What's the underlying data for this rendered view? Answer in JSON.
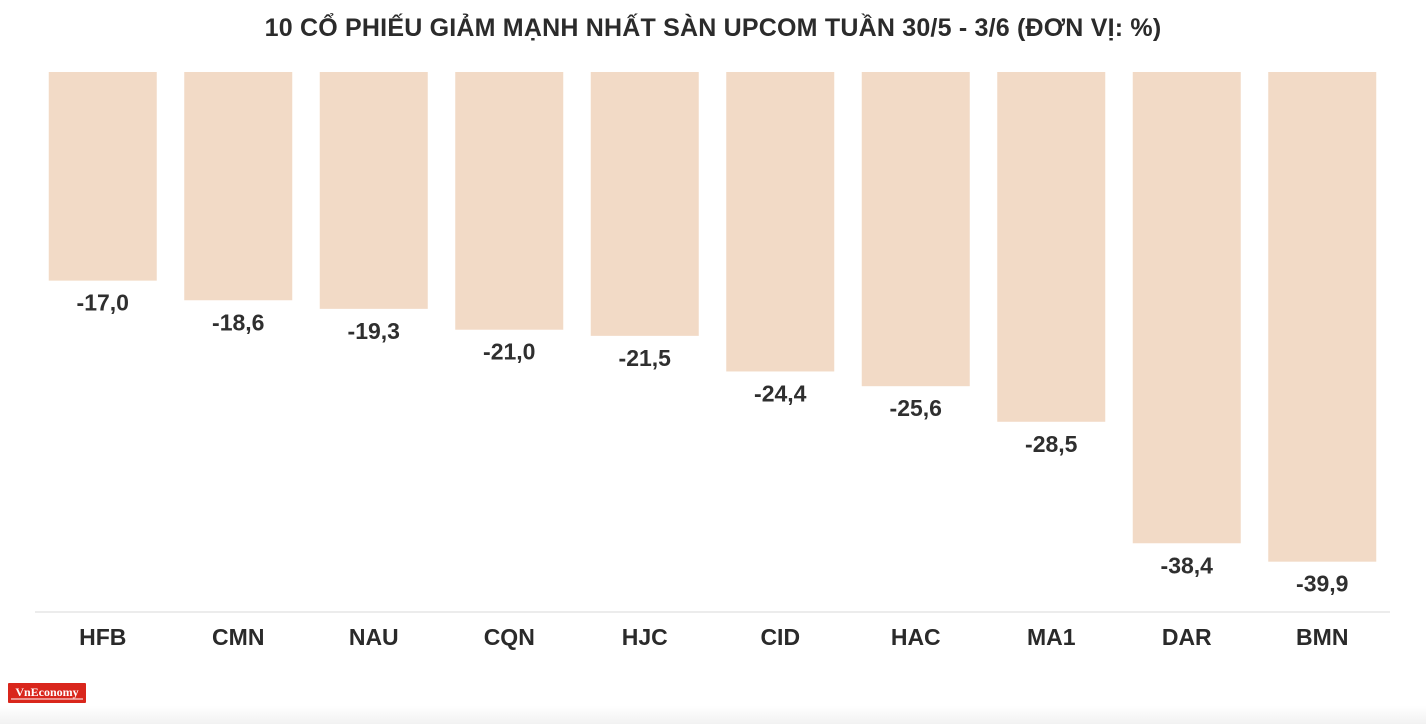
{
  "chart_data": {
    "type": "bar",
    "title": "10 CỔ PHIẾU GIẢM MẠNH NHẤT SÀN UPCOM TUẦN 30/5 - 3/6 (ĐƠN VỊ: %)",
    "categories": [
      "HFB",
      "CMN",
      "NAU",
      "CQN",
      "HJC",
      "CID",
      "HAC",
      "MA1",
      "DAR",
      "BMN"
    ],
    "values": [
      -17.0,
      -18.6,
      -19.3,
      -21.0,
      -21.5,
      -24.4,
      -25.6,
      -28.5,
      -38.4,
      -39.9
    ],
    "value_labels": [
      "-17,0",
      "-18,6",
      "-19,3",
      "-21,0",
      "-21,5",
      "-24,4",
      "-25,6",
      "-28,5",
      "-38,4",
      "-39,9"
    ],
    "xlabel": "",
    "ylabel": "",
    "ylim": [
      -44,
      0
    ],
    "grid": false,
    "bar_color": "#f2dac6"
  },
  "logo": {
    "text": "VnEconomy"
  }
}
